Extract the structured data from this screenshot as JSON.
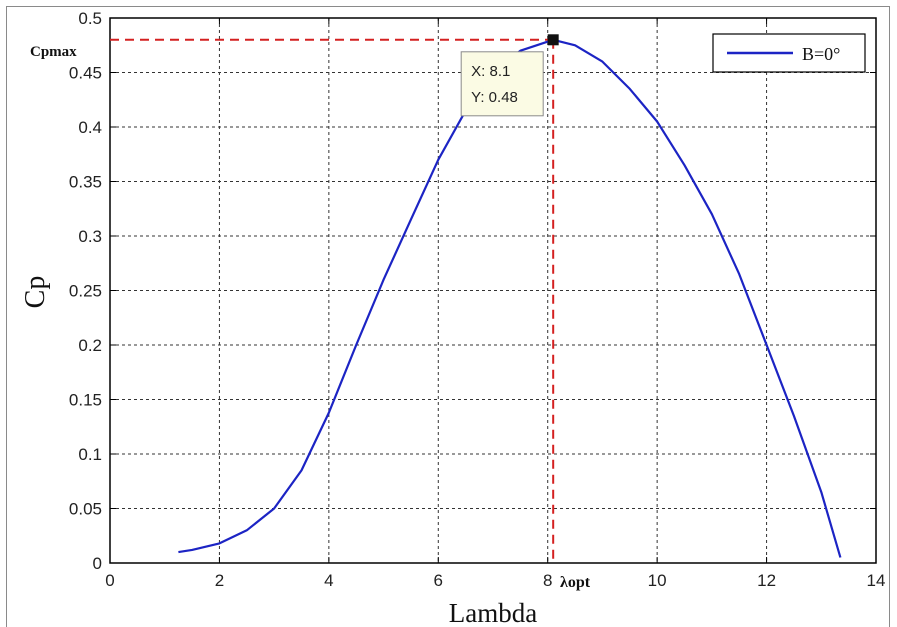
{
  "chart_data": {
    "type": "line",
    "title": "",
    "xlabel": "Lambda",
    "ylabel": "Cp",
    "xlim": [
      0,
      14
    ],
    "ylim": [
      0,
      0.5
    ],
    "x_ticks": [
      0,
      2,
      4,
      6,
      8,
      10,
      12,
      14
    ],
    "y_ticks": [
      0,
      0.05,
      0.1,
      0.15,
      0.2,
      0.25,
      0.3,
      0.35,
      0.4,
      0.45,
      0.5
    ],
    "grid": true,
    "legend_position": "top-right",
    "series": [
      {
        "name": "B=0°",
        "color": "#1c24c4",
        "x": [
          1.25,
          1.5,
          2.0,
          2.5,
          3.0,
          3.5,
          4.0,
          4.5,
          5.0,
          5.5,
          6.0,
          6.5,
          7.0,
          7.5,
          8.1,
          8.5,
          9.0,
          9.5,
          10.0,
          10.5,
          11.0,
          11.5,
          12.0,
          12.5,
          13.0,
          13.35
        ],
        "y": [
          0.01,
          0.012,
          0.018,
          0.03,
          0.05,
          0.085,
          0.138,
          0.2,
          0.26,
          0.315,
          0.37,
          0.415,
          0.45,
          0.47,
          0.48,
          0.475,
          0.46,
          0.435,
          0.405,
          0.365,
          0.32,
          0.265,
          0.2,
          0.135,
          0.065,
          0.005
        ]
      }
    ],
    "annotations": {
      "cpmax_label": "Cpmax",
      "lambda_opt_label": "λopt",
      "marker": {
        "x": 8.1,
        "y": 0.48
      },
      "datatip": {
        "x_text": "X: 8.1",
        "y_text": "Y: 0.48"
      },
      "guide_color": "#d42020"
    }
  }
}
